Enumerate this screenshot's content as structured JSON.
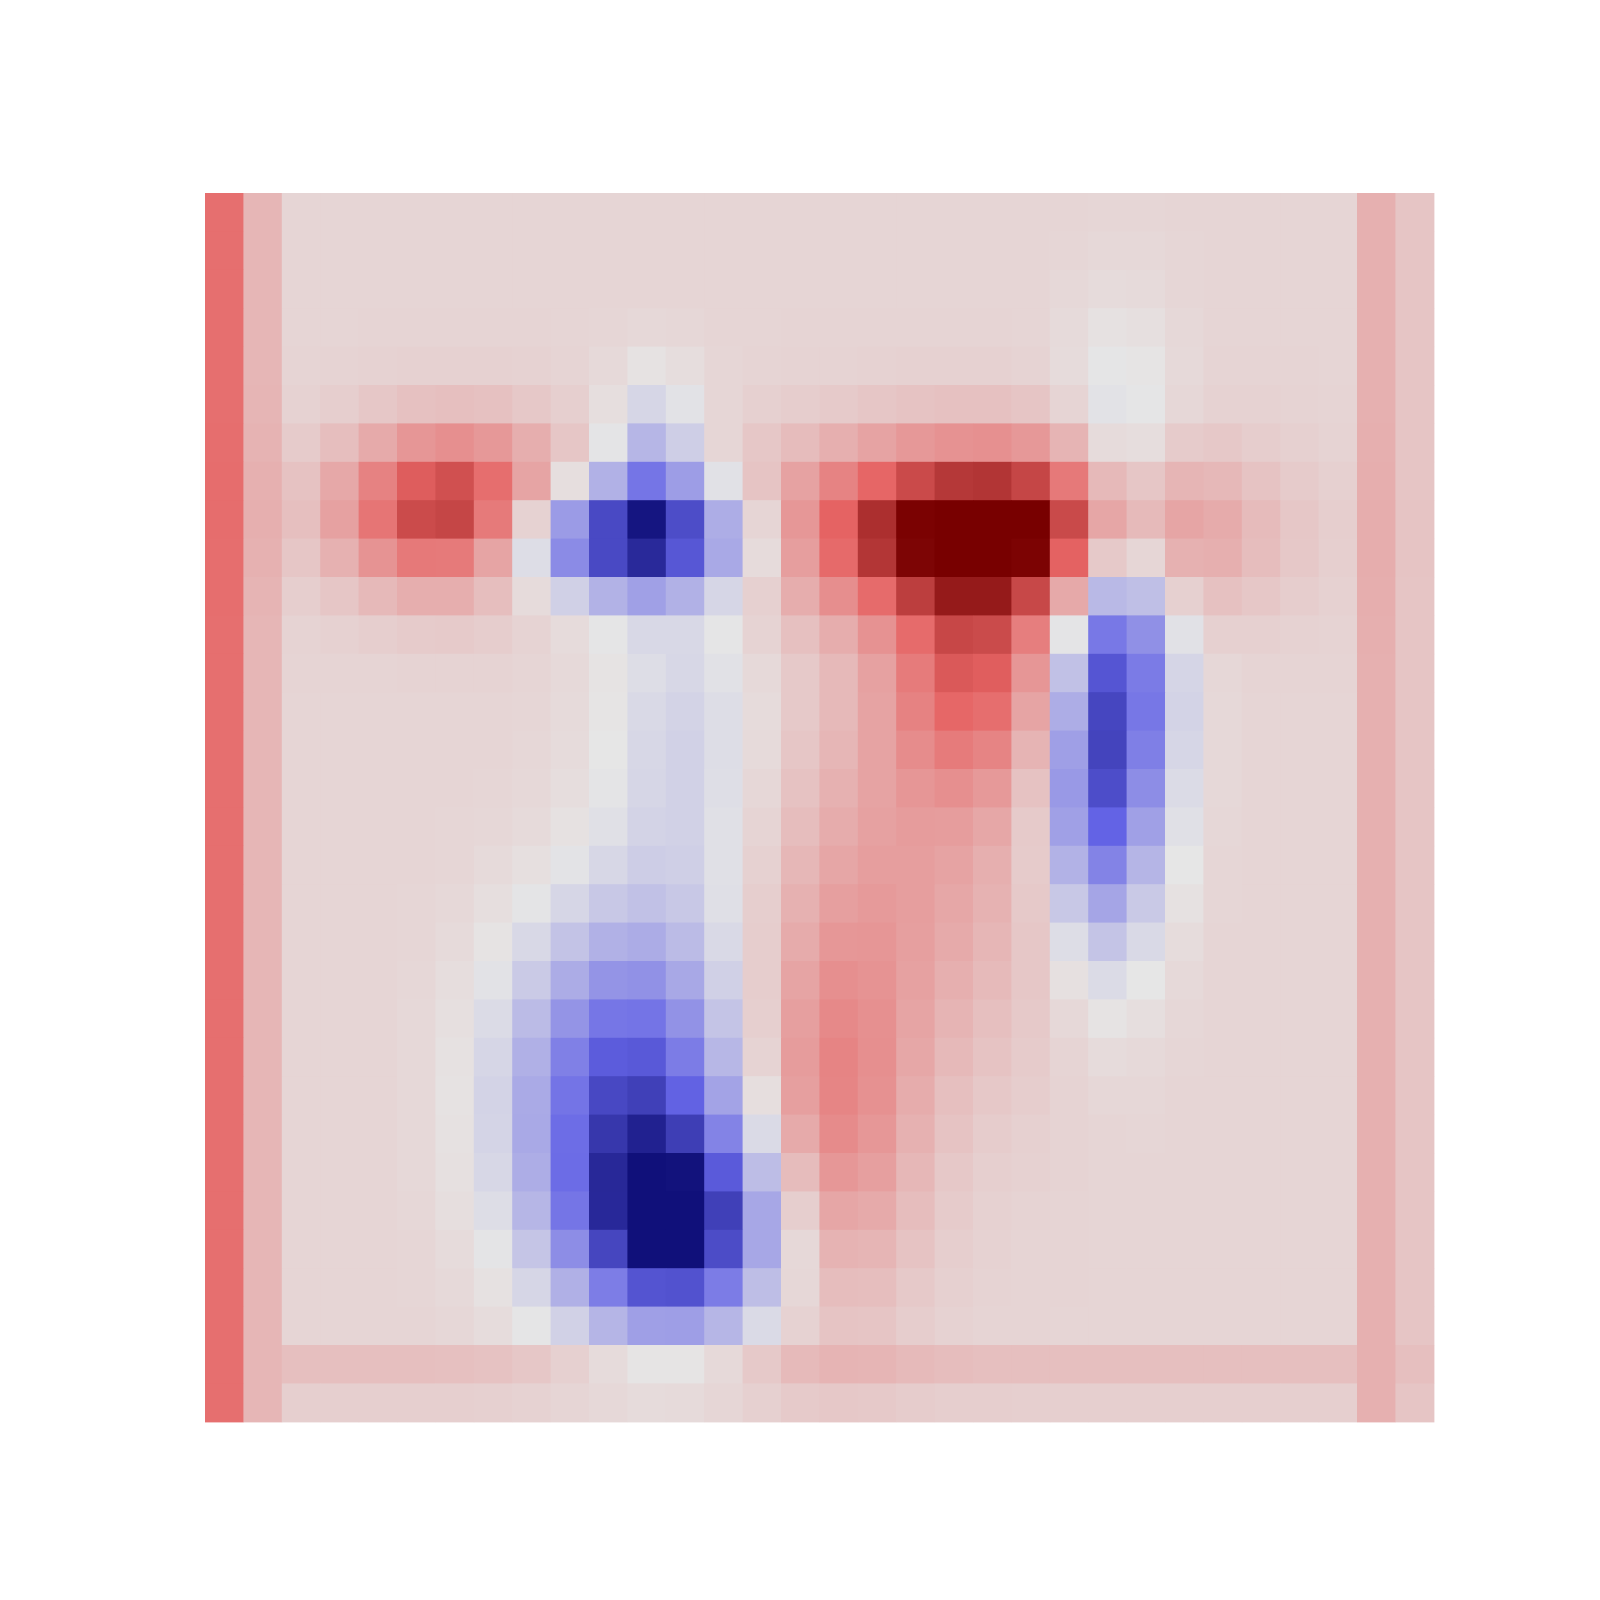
{
  "heatmap": {
    "colormap": {
      "negative": "#10107a",
      "neutral": "#e6e6e6",
      "positive": "#780000"
    },
    "grid": {
      "rows": 32,
      "cols": 32
    },
    "base_value": 0.08,
    "frame": [
      {
        "side": "left-outer",
        "value": 0.55
      },
      {
        "side": "left-inner",
        "value": 0.22
      },
      {
        "side": "right-inner",
        "value": 0.25
      },
      {
        "side": "top",
        "value": 0.12
      },
      {
        "side": "bottom",
        "value": 0.18
      }
    ],
    "blobs": [
      {
        "row": 7.8,
        "col": 6.0,
        "sr": 1.4,
        "sc": 2.0,
        "value": 0.75
      },
      {
        "row": 8.5,
        "col": 10.5,
        "sr": 1.0,
        "sc": 2.2,
        "value": -0.95
      },
      {
        "row": 7.0,
        "col": 11.2,
        "sr": 1.6,
        "sc": 0.8,
        "value": -0.35
      },
      {
        "row": 8.3,
        "col": 19.8,
        "sr": 1.5,
        "sc": 3.5,
        "value": 1.0
      },
      {
        "row": 12.0,
        "col": 19.5,
        "sr": 2.0,
        "sc": 1.5,
        "value": 0.45
      },
      {
        "row": 12.0,
        "col": 23.3,
        "sr": 4.0,
        "sc": 1.0,
        "value": -0.75
      },
      {
        "row": 15.5,
        "col": 22.5,
        "sr": 2.5,
        "sc": 0.8,
        "value": -0.35
      },
      {
        "row": 14.0,
        "col": 12.0,
        "sr": 3.5,
        "sc": 1.5,
        "value": -0.18
      },
      {
        "row": 23.0,
        "col": 10.5,
        "sr": 3.0,
        "sc": 2.0,
        "value": -0.75
      },
      {
        "row": 26.5,
        "col": 11.8,
        "sr": 1.8,
        "sc": 1.8,
        "value": -0.9
      },
      {
        "row": 23.5,
        "col": 15.8,
        "sr": 3.5,
        "sc": 1.5,
        "value": 0.35
      },
      {
        "row": 17.0,
        "col": 18.0,
        "sr": 4.0,
        "sc": 2.5,
        "value": 0.22
      }
    ]
  }
}
